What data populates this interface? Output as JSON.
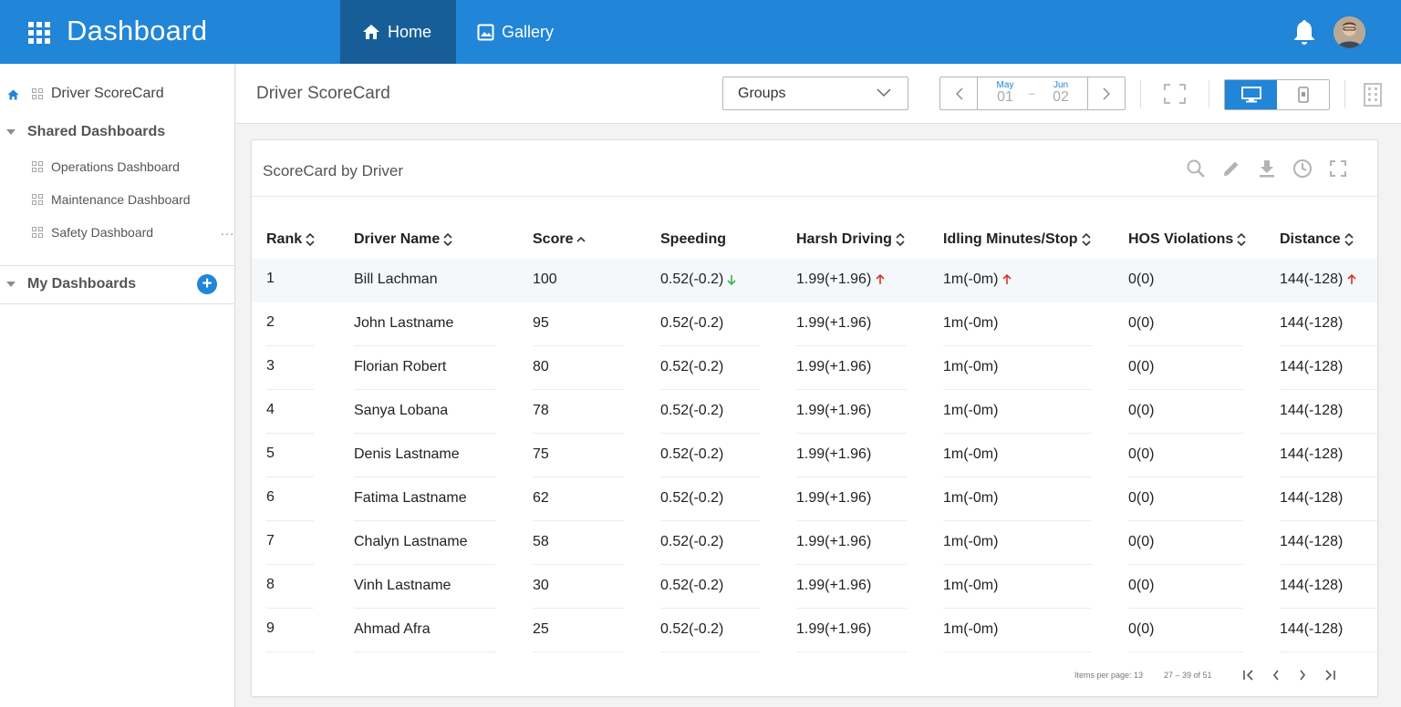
{
  "header": {
    "title": "Dashboard",
    "tabs": [
      {
        "label": "Home",
        "icon": "home-icon",
        "active": true
      },
      {
        "label": "Gallery",
        "icon": "image-icon",
        "active": false
      }
    ],
    "accent_color": "#2185d8",
    "active_tab_color": "#175e99"
  },
  "sidebar": {
    "current": "Driver ScoreCard",
    "shared_section": "Shared Dashboards",
    "shared_items": [
      "Operations Dashboard",
      "Maintenance Dashboard",
      "Safety Dashboard"
    ],
    "more_label": "···",
    "my_section": "My Dashboards",
    "add_label": "+"
  },
  "toolbar": {
    "page_title": "Driver ScoreCard",
    "groups_value": "Groups",
    "date_from": {
      "month": "May",
      "day": "01"
    },
    "date_to": {
      "month": "Jun",
      "day": "02"
    },
    "date_separator": "–"
  },
  "card": {
    "title": "ScoreCard by Driver",
    "tools": [
      "search-icon",
      "edit-icon",
      "download-icon",
      "history-icon",
      "fullscreen-icon"
    ],
    "columns": [
      "Rank",
      "Driver Name",
      "Score",
      "Speeding",
      "Harsh Driving",
      "Idling Minutes/Stop",
      "HOS Violations",
      "Distance"
    ],
    "rows": [
      {
        "rank": "1",
        "name": "Bill Lachman",
        "score": "100",
        "speeding": "0.52(-0.2)",
        "harsh": "1.99(+1.96)",
        "idling": "1m(-0m)",
        "hos": "0(0)",
        "distance": "144(-128)"
      },
      {
        "rank": "2",
        "name": "John Lastname",
        "score": "95",
        "speeding": "0.52(-0.2)",
        "harsh": "1.99(+1.96)",
        "idling": "1m(-0m)",
        "hos": "0(0)",
        "distance": "144(-128)"
      },
      {
        "rank": "3",
        "name": "Florian Robert",
        "score": "80",
        "speeding": "0.52(-0.2)",
        "harsh": "1.99(+1.96)",
        "idling": "1m(-0m)",
        "hos": "0(0)",
        "distance": "144(-128)"
      },
      {
        "rank": "4",
        "name": "Sanya Lobana",
        "score": "78",
        "speeding": "0.52(-0.2)",
        "harsh": "1.99(+1.96)",
        "idling": "1m(-0m)",
        "hos": "0(0)",
        "distance": "144(-128)"
      },
      {
        "rank": "5",
        "name": "Denis Lastname",
        "score": "75",
        "speeding": "0.52(-0.2)",
        "harsh": "1.99(+1.96)",
        "idling": "1m(-0m)",
        "hos": "0(0)",
        "distance": "144(-128)"
      },
      {
        "rank": "6",
        "name": "Fatima Lastname",
        "score": "62",
        "speeding": "0.52(-0.2)",
        "harsh": "1.99(+1.96)",
        "idling": "1m(-0m)",
        "hos": "0(0)",
        "distance": "144(-128)"
      },
      {
        "rank": "7",
        "name": "Chalyn Lastname",
        "score": "58",
        "speeding": "0.52(-0.2)",
        "harsh": "1.99(+1.96)",
        "idling": "1m(-0m)",
        "hos": "0(0)",
        "distance": "144(-128)"
      },
      {
        "rank": "8",
        "name": "Vinh Lastname",
        "score": "30",
        "speeding": "0.52(-0.2)",
        "harsh": "1.99(+1.96)",
        "idling": "1m(-0m)",
        "hos": "0(0)",
        "distance": "144(-128)"
      },
      {
        "rank": "9",
        "name": "Ahmad Afra",
        "score": "25",
        "speeding": "0.52(-0.2)",
        "harsh": "1.99(+1.96)",
        "idling": "1m(-0m)",
        "hos": "0(0)",
        "distance": "144(-128)"
      }
    ],
    "trend_up_color": "#d9342b",
    "trend_down_color": "#3cb34a",
    "pager": {
      "items_per_page": "Items per page: 13",
      "range": "27 – 39 of 51"
    }
  }
}
